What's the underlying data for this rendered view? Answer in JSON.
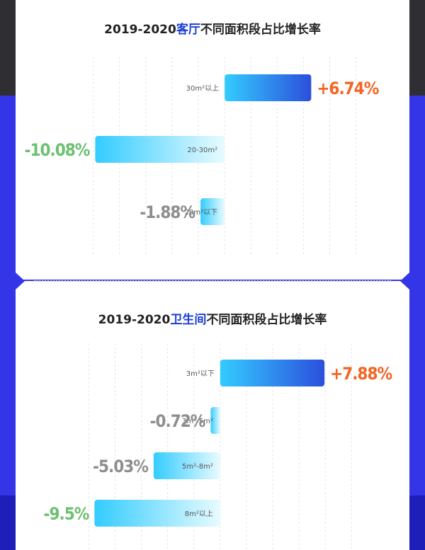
{
  "colors": {
    "positive_value": "#f26522",
    "negative_value": "#6cc070",
    "neutral_value": "#8e8e8e",
    "title_highlight": "#1a3ed6",
    "bar_light": "#33ccff",
    "bar_dark": "#2b4fdc"
  },
  "chart_data": [
    {
      "type": "bar",
      "orientation": "horizontal",
      "title": {
        "prefix": "2019-2020",
        "highlight": "客厅",
        "suffix": "不同面积段占比增长率"
      },
      "categories": [
        "30m²以上",
        "20-30m²",
        "20m²以下"
      ],
      "values": [
        6.74,
        -10.08,
        -1.88
      ],
      "value_labels": [
        "+6.74%",
        "-10.08%",
        "-1.88%"
      ],
      "label_style": [
        "positive",
        "negative",
        "neutral"
      ],
      "xlim": [
        -12.2,
        11.3
      ],
      "grid": true
    },
    {
      "type": "bar",
      "orientation": "horizontal",
      "title": {
        "prefix": "2019-2020",
        "highlight": "卫生间",
        "suffix": "不同面积段占比增长率"
      },
      "categories": [
        "3m²以下",
        "3m²-5m²",
        "5m²-8m²",
        "8m²以上"
      ],
      "values": [
        7.88,
        -0.72,
        -5.03,
        -9.5
      ],
      "value_labels": [
        "+7.88%",
        "-0.72%",
        "-5.03%",
        "-9.5%"
      ],
      "label_style": [
        "positive",
        "neutral",
        "neutral",
        "negative"
      ],
      "xlim": [
        -11.5,
        11.3
      ],
      "grid": true
    }
  ]
}
